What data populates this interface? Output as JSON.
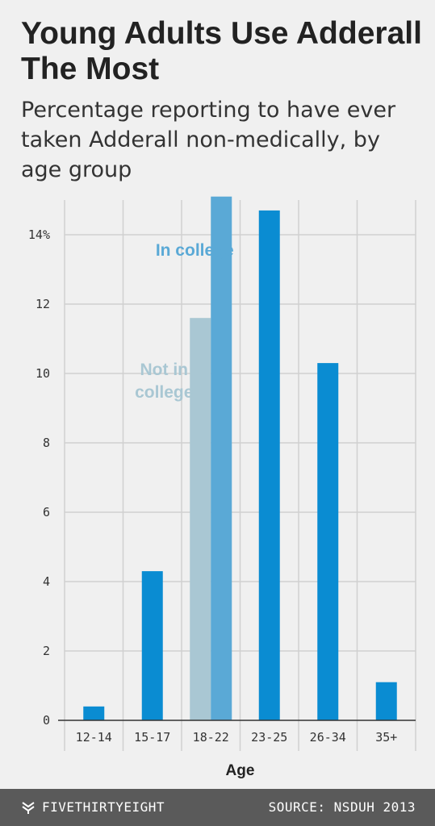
{
  "title": "Young Adults Use Adderall The Most",
  "subtitle": "Percentage reporting to have ever taken Adderall non-medically, by age group",
  "colors": {
    "primary": "#0a8cd2",
    "in_college": "#5aa9d6",
    "not_in_college": "#a9c7d3",
    "grid": "#d0d0d0",
    "background": "#f0f0f0",
    "footer": "#5a5a5a"
  },
  "chart_data": {
    "type": "bar",
    "categories": [
      "12-14",
      "15-17",
      "18-22",
      "23-25",
      "26-34",
      "35+"
    ],
    "values": [
      0.4,
      4.3,
      null,
      14.7,
      10.3,
      1.1
    ],
    "split_category": {
      "category": "18-22",
      "series": [
        {
          "name": "Not in college",
          "value": 11.6
        },
        {
          "name": "In college",
          "value": 15.1
        }
      ]
    },
    "annotations": [
      {
        "text": "In college",
        "series": "In college"
      },
      {
        "text": "Not in college",
        "lines": [
          "Not in",
          "college"
        ],
        "series": "Not in college"
      }
    ],
    "yticks": [
      "0",
      "2",
      "4",
      "6",
      "8",
      "10",
      "12",
      "14%"
    ],
    "ytick_values": [
      0,
      2,
      4,
      6,
      8,
      10,
      12,
      14
    ],
    "ylim": [
      0,
      15
    ],
    "xlabel": "Age",
    "ylabel": "",
    "grid": true
  },
  "footer": {
    "brand": "FIVETHIRTYEIGHT",
    "brand_icon": "fivethirtyeight-logo-icon",
    "source": "SOURCE: NSDUH 2013"
  }
}
